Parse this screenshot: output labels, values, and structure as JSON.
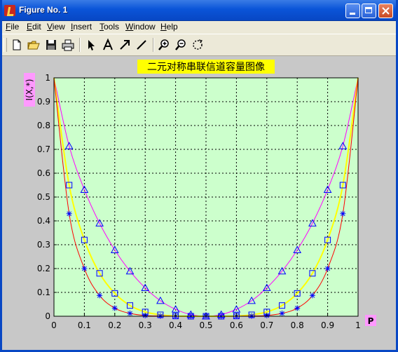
{
  "window": {
    "title": "Figure No. 1",
    "buttons": [
      "minimize",
      "maximize",
      "close"
    ]
  },
  "menu": [
    "File",
    "Edit",
    "View",
    "Insert",
    "Tools",
    "Window",
    "Help"
  ],
  "toolbar": {
    "icons": [
      "new-file-icon",
      "open-folder-icon",
      "save-icon",
      "print-icon",
      "arrow-select-icon",
      "text-icon",
      "arrow-icon",
      "line-icon",
      "zoom-in-icon",
      "zoom-out-icon",
      "rotate-icon"
    ]
  },
  "colors": {
    "plot_bg": "#ccffcc",
    "figure_bg": "#c8c8c8",
    "title_bg": "#ffff00",
    "label_bg": "#ff99ff",
    "red": "#ff0000",
    "yellow": "#ffff00",
    "magenta": "#ff00ff",
    "marker": "#0000ff"
  },
  "chart_data": {
    "type": "line",
    "title": "二元对称串联信道容量图像",
    "xlabel": "P",
    "ylabel": "I(X,*)",
    "xlim": [
      0,
      1
    ],
    "ylim": [
      0,
      1
    ],
    "xticks": [
      "0",
      "0.1",
      "0.2",
      "0.3",
      "0.4",
      "0.5",
      "0.6",
      "0.7",
      "0.8",
      "0.9",
      "1"
    ],
    "yticks": [
      "0",
      "0.1",
      "0.2",
      "0.3",
      "0.4",
      "0.5",
      "0.6",
      "0.7",
      "0.8",
      "0.9",
      "1"
    ],
    "grid": true,
    "series": [
      {
        "color": "#ff00ff",
        "marker": "triangle",
        "x": [
          0.05,
          0.1,
          0.15,
          0.2,
          0.25,
          0.3,
          0.35,
          0.4,
          0.45,
          0.5,
          0.55,
          0.6,
          0.65,
          0.7,
          0.75,
          0.8,
          0.85,
          0.9,
          0.95
        ],
        "values": [
          0.714,
          0.531,
          0.39,
          0.278,
          0.189,
          0.119,
          0.065,
          0.029,
          0.007,
          0,
          0.007,
          0.029,
          0.065,
          0.119,
          0.189,
          0.278,
          0.39,
          0.531,
          0.714
        ]
      },
      {
        "color": "#ffff00",
        "marker": "square",
        "x": [
          0.05,
          0.1,
          0.15,
          0.2,
          0.25,
          0.3,
          0.35,
          0.4,
          0.45,
          0.5,
          0.55,
          0.6,
          0.65,
          0.7,
          0.75,
          0.8,
          0.85,
          0.9,
          0.95
        ],
        "values": [
          0.55,
          0.32,
          0.18,
          0.096,
          0.045,
          0.018,
          0.006,
          0.001,
          0,
          0,
          0,
          0.001,
          0.006,
          0.018,
          0.045,
          0.096,
          0.18,
          0.32,
          0.55
        ]
      },
      {
        "color": "#ff0000",
        "marker": "star",
        "x": [
          0.05,
          0.1,
          0.15,
          0.2,
          0.25,
          0.3,
          0.35,
          0.4,
          0.45,
          0.5,
          0.55,
          0.6,
          0.65,
          0.7,
          0.75,
          0.8,
          0.85,
          0.9,
          0.95
        ],
        "values": [
          0.43,
          0.2,
          0.087,
          0.034,
          0.012,
          0.003,
          0.001,
          0,
          0,
          0,
          0,
          0,
          0.001,
          0.003,
          0.012,
          0.034,
          0.087,
          0.2,
          0.43
        ]
      }
    ]
  }
}
